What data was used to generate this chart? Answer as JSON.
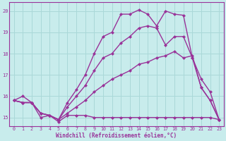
{
  "xlabel": "Windchill (Refroidissement éolien,°C)",
  "bg_color": "#c8ecec",
  "line_color": "#993399",
  "grid_color": "#aad8d8",
  "ylim": [
    14.6,
    20.4
  ],
  "xlim": [
    -0.5,
    23.5
  ],
  "yticks": [
    15,
    16,
    17,
    18,
    19,
    20
  ],
  "xticks": [
    0,
    1,
    2,
    3,
    4,
    5,
    6,
    7,
    8,
    9,
    10,
    11,
    12,
    13,
    14,
    15,
    16,
    17,
    18,
    19,
    20,
    21,
    22,
    23
  ],
  "series1_y": [
    15.8,
    16.0,
    15.7,
    15.0,
    15.1,
    14.8,
    15.1,
    15.1,
    15.1,
    15.0,
    15.0,
    15.0,
    15.0,
    15.0,
    15.0,
    15.0,
    15.0,
    15.0,
    15.0,
    15.0,
    15.0,
    15.0,
    15.0,
    14.9
  ],
  "series2_y": [
    15.8,
    15.7,
    15.7,
    15.2,
    15.1,
    14.9,
    15.2,
    15.5,
    15.8,
    16.2,
    16.5,
    16.8,
    17.0,
    17.2,
    17.5,
    17.6,
    17.8,
    17.9,
    18.1,
    17.8,
    17.9,
    16.4,
    15.8,
    14.9
  ],
  "series3_y": [
    15.8,
    15.7,
    15.7,
    15.2,
    15.1,
    14.9,
    15.5,
    16.0,
    16.5,
    17.2,
    17.8,
    18.0,
    18.5,
    18.8,
    19.2,
    19.3,
    19.2,
    18.4,
    18.8,
    18.8,
    17.8,
    16.8,
    16.2,
    14.9
  ],
  "series_top_y": [
    15.8,
    15.7,
    15.7,
    15.2,
    15.1,
    14.9,
    15.7,
    16.3,
    17.0,
    18.0,
    18.8,
    19.0,
    19.85,
    19.85,
    20.05,
    19.85,
    19.3,
    20.0,
    19.85,
    19.8,
    17.8,
    16.4,
    15.8,
    14.9
  ],
  "marker": "D",
  "markersize": 2.5,
  "linewidth": 1.0
}
